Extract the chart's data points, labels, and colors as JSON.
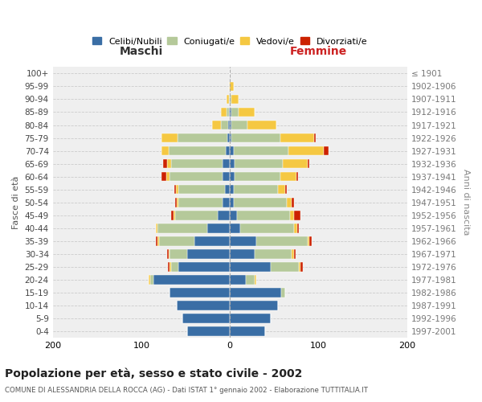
{
  "age_groups": [
    "0-4",
    "5-9",
    "10-14",
    "15-19",
    "20-24",
    "25-29",
    "30-34",
    "35-39",
    "40-44",
    "45-49",
    "50-54",
    "55-59",
    "60-64",
    "65-69",
    "70-74",
    "75-79",
    "80-84",
    "85-89",
    "90-94",
    "95-99",
    "100+"
  ],
  "birth_years": [
    "1997-2001",
    "1992-1996",
    "1987-1991",
    "1982-1986",
    "1977-1981",
    "1972-1976",
    "1967-1971",
    "1962-1966",
    "1957-1961",
    "1952-1956",
    "1947-1951",
    "1942-1946",
    "1937-1941",
    "1932-1936",
    "1927-1931",
    "1922-1926",
    "1917-1921",
    "1912-1916",
    "1907-1911",
    "1902-1906",
    "≤ 1901"
  ],
  "maschi": {
    "celibi": [
      48,
      54,
      60,
      68,
      86,
      58,
      48,
      40,
      26,
      14,
      8,
      6,
      8,
      8,
      5,
      3,
      2,
      1,
      0,
      0,
      0
    ],
    "coniugati": [
      0,
      0,
      0,
      0,
      4,
      8,
      20,
      40,
      56,
      48,
      50,
      52,
      60,
      58,
      64,
      56,
      8,
      3,
      1,
      0,
      0
    ],
    "vedovi": [
      0,
      0,
      0,
      0,
      2,
      2,
      1,
      2,
      2,
      2,
      2,
      3,
      4,
      5,
      8,
      18,
      10,
      6,
      3,
      1,
      0
    ],
    "divorziati": [
      0,
      0,
      0,
      0,
      0,
      2,
      2,
      2,
      0,
      2,
      2,
      2,
      5,
      4,
      0,
      0,
      0,
      0,
      0,
      0,
      0
    ]
  },
  "femmine": {
    "nubili": [
      40,
      46,
      54,
      58,
      18,
      46,
      28,
      30,
      12,
      8,
      4,
      4,
      5,
      5,
      4,
      2,
      2,
      2,
      0,
      0,
      0
    ],
    "coniugate": [
      0,
      0,
      0,
      4,
      10,
      32,
      42,
      58,
      60,
      60,
      60,
      50,
      52,
      55,
      62,
      55,
      18,
      8,
      2,
      0,
      0
    ],
    "vedove": [
      0,
      0,
      0,
      0,
      2,
      2,
      2,
      2,
      4,
      4,
      6,
      8,
      18,
      28,
      40,
      38,
      32,
      18,
      8,
      4,
      0
    ],
    "divorziate": [
      0,
      0,
      0,
      0,
      0,
      2,
      2,
      2,
      2,
      8,
      2,
      2,
      2,
      2,
      5,
      2,
      0,
      0,
      0,
      0,
      0
    ]
  },
  "colors": {
    "celibi_nubili": "#3A6EA5",
    "coniugati": "#B5C99A",
    "vedovi": "#F5C842",
    "divorziati": "#CC2200"
  },
  "title": "Popolazione per età, sesso e stato civile - 2002",
  "subtitle": "COMUNE DI ALESSANDRIA DELLA ROCCA (AG) - Dati ISTAT 1° gennaio 2002 - Elaborazione TUTTITALIA.IT",
  "xlabel_maschi": "Maschi",
  "xlabel_femmine": "Femmine",
  "ylabel_left": "Fasce di età",
  "ylabel_right": "Anni di nascita",
  "xlim": 200,
  "bg_color": "#ffffff",
  "plot_bg": "#efefef",
  "grid_color": "#cccccc",
  "legend_labels": [
    "Celibi/Nubili",
    "Coniugati/e",
    "Vedovi/e",
    "Divorziati/e"
  ]
}
